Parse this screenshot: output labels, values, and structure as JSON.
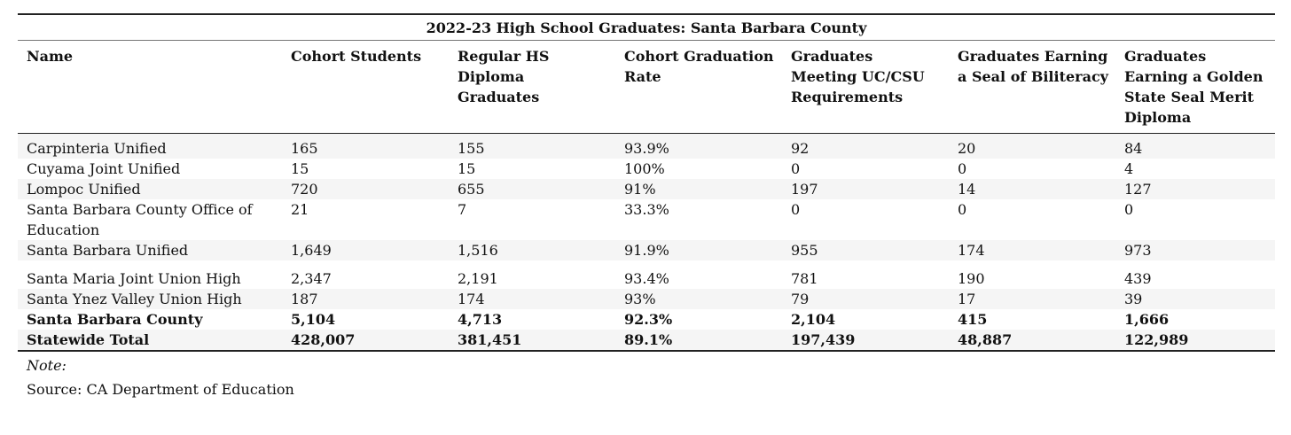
{
  "title": "2022-23 High School Graduates: Santa Barbara County",
  "headers": [
    "Name",
    "Cohort Students",
    "Regular HS Diploma Graduates",
    "Cohort Graduation Rate",
    "Graduates Meeting UC/CSU Requirements",
    "Graduates Earning a Seal of Biliteracy",
    "Graduates Earning a Golden State Seal Merit Diploma"
  ],
  "rows": [
    [
      "Carpinteria Unified",
      "165",
      "155",
      "93.9%",
      "92",
      "20",
      "84"
    ],
    [
      "Cuyama Joint Unified",
      "15",
      "15",
      "100%",
      "0",
      "0",
      "4"
    ],
    [
      "Lompoc Unified",
      "720",
      "655",
      "91%",
      "197",
      "14",
      "127"
    ],
    [
      "Santa Barbara County Office of Education",
      "21",
      "7",
      "33.3%",
      "0",
      "0",
      "0"
    ],
    [
      "Santa Barbara Unified",
      "1,649",
      "1,516",
      "91.9%",
      "955",
      "174",
      "973"
    ],
    [
      "Santa Maria Joint Union High",
      "2,347",
      "2,191",
      "93.4%",
      "781",
      "190",
      "439"
    ],
    [
      "Santa Ynez Valley Union High",
      "187",
      "174",
      "93%",
      "79",
      "17",
      "39"
    ],
    [
      "Santa Barbara County",
      "5,104",
      "4,713",
      "92.3%",
      "2,104",
      "415",
      "1,666"
    ],
    [
      "Statewide Total",
      "428,007",
      "381,451",
      "89.1%",
      "197,439",
      "48,887",
      "122,989"
    ]
  ],
  "note_label": "Note:",
  "source": "Source: CA Department of Education"
}
